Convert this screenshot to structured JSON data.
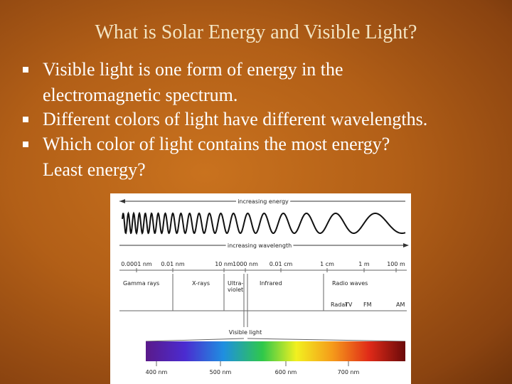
{
  "title": "What is Solar Energy and Visible Light?",
  "bullets": [
    [
      "Visible light is one form of energy in the",
      "electromagnetic spectrum."
    ],
    [
      "Different colors of light have different wavelengths."
    ],
    [
      "Which color of light contains the most energy?",
      "Least energy?"
    ]
  ],
  "figure": {
    "energy_label": "increasing energy",
    "wavelength_label": "increasing wavelength",
    "scale": [
      "0.0001 nm",
      "0.01 nm",
      "10 nm",
      "1000 nm",
      "0.01 cm",
      "1 cm",
      "1 m",
      "100 m"
    ],
    "regions": [
      "Gamma rays",
      "X-rays",
      "Ultra-",
      "violet",
      "Infrared",
      "Radio waves"
    ],
    "radio_bands": [
      "Radar",
      "TV",
      "FM",
      "AM"
    ],
    "visible_label": "Visible light",
    "visible_scale": [
      "400 nm",
      "500 nm",
      "600 nm",
      "700 nm"
    ]
  }
}
